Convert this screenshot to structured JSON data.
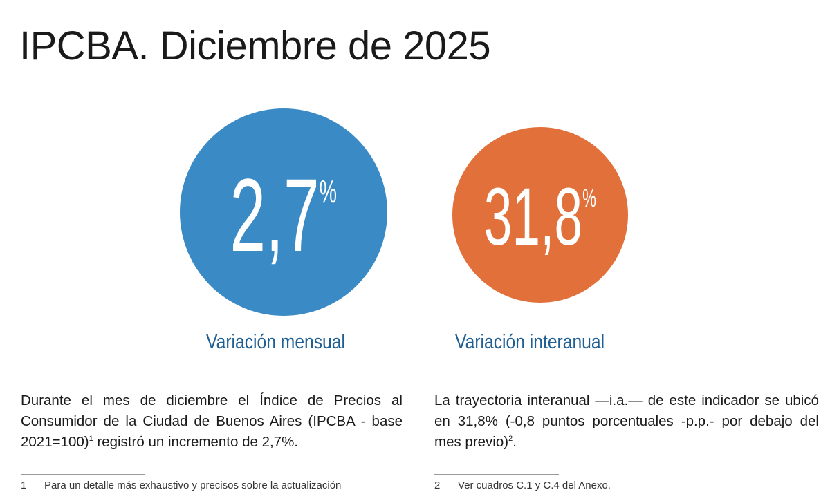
{
  "title": "IPCBA. Diciembre de 2025",
  "stats": {
    "monthly": {
      "value": "2,7",
      "unit": "%",
      "label": "Variación mensual",
      "color": "#3a8ac6"
    },
    "annual": {
      "value": "31,8",
      "unit": "%",
      "label": "Variación interanual",
      "color": "#e2703a"
    }
  },
  "paragraphs": {
    "left": {
      "text_before_sup": "Durante el mes de diciembre el Índice de Precios al Consumidor de la Ciudad de Buenos Aires (IPCBA - base 2021=100)",
      "sup": "1",
      "text_after_sup": " registró un incremento de 2,7%."
    },
    "right": {
      "text_before_sup": "La trayectoria interanual —i.a.— de este indicador se ubicó en 31,8% (-0,8 puntos porcentuales -p.p.- por debajo del mes previo)",
      "sup": "2",
      "text_after_sup": "."
    }
  },
  "footnotes": {
    "left": {
      "number": "1",
      "text": "Para un detalle más exhaustivo y precisos sobre la actualización"
    },
    "right": {
      "number": "2",
      "text": "Ver cuadros C.1 y C.4 del Anexo."
    }
  }
}
